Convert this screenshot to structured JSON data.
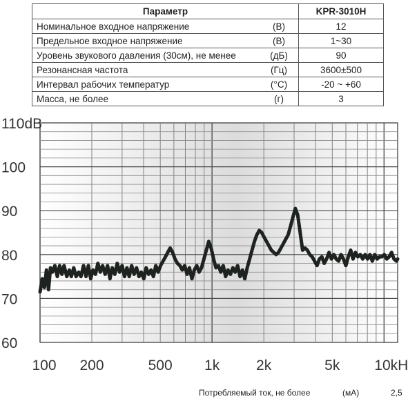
{
  "table": {
    "header": {
      "param": "Параметр",
      "model": "KPR-3010H"
    },
    "rows": [
      {
        "param": "Номинальное входное напряжение",
        "unit": "(В)",
        "value": "12"
      },
      {
        "param": "Предельное входное напряжение",
        "unit": "(В)",
        "value": "1~30"
      },
      {
        "param": "Уровень звукового давления (30см), не менее",
        "unit": "(дБ)",
        "value": "90"
      },
      {
        "param": "Резонансная частота",
        "unit": "(Гц)",
        "value": "3600±500"
      },
      {
        "param": "Интервал рабочих температур",
        "unit": "(°С)",
        "value": "-20 ~ +60"
      },
      {
        "param": "Масса, не более",
        "unit": "(г)",
        "value": "3"
      }
    ]
  },
  "footer": {
    "param": "Потребляемый ток, не более",
    "unit": "(мА)",
    "value": "2,5"
  },
  "chart_data": {
    "type": "line",
    "x_scale": "log",
    "xlim": [
      100,
      12000
    ],
    "ylim": [
      60,
      110
    ],
    "grid": true,
    "x_ticks": [
      {
        "value": 100,
        "label": "100"
      },
      {
        "value": 200,
        "label": "200"
      },
      {
        "value": 500,
        "label": "500"
      },
      {
        "value": 1000,
        "label": "1k"
      },
      {
        "value": 2000,
        "label": "2k"
      },
      {
        "value": 5000,
        "label": "5k"
      },
      {
        "value": 10000,
        "label": "10kHz"
      }
    ],
    "y_ticks": [
      {
        "value": 60,
        "label": "60"
      },
      {
        "value": 70,
        "label": "70"
      },
      {
        "value": 80,
        "label": "80"
      },
      {
        "value": 90,
        "label": "90"
      },
      {
        "value": 100,
        "label": "100"
      },
      {
        "value": 110,
        "label": "110dB"
      }
    ],
    "series": [
      {
        "color": "#1e2320",
        "points": [
          [
            100,
            71.5
          ],
          [
            103,
            74.5
          ],
          [
            106,
            72.5
          ],
          [
            109,
            76.5
          ],
          [
            112,
            72
          ],
          [
            115,
            77
          ],
          [
            118,
            76
          ],
          [
            122,
            77.5
          ],
          [
            126,
            75
          ],
          [
            130,
            77.5
          ],
          [
            134,
            75.5
          ],
          [
            138,
            77.5
          ],
          [
            143,
            75
          ],
          [
            148,
            76.5
          ],
          [
            152,
            75
          ],
          [
            157,
            77
          ],
          [
            162,
            75
          ],
          [
            168,
            76
          ],
          [
            173,
            75
          ],
          [
            179,
            77.5
          ],
          [
            185,
            75
          ],
          [
            191,
            77.5
          ],
          [
            197,
            74.5
          ],
          [
            203,
            76.5
          ],
          [
            210,
            75.5
          ],
          [
            217,
            78
          ],
          [
            224,
            76
          ],
          [
            231,
            77.5
          ],
          [
            239,
            75.5
          ],
          [
            247,
            77.5
          ],
          [
            255,
            74.5
          ],
          [
            263,
            77
          ],
          [
            272,
            75.5
          ],
          [
            281,
            78
          ],
          [
            290,
            76
          ],
          [
            300,
            77.5
          ],
          [
            310,
            75
          ],
          [
            320,
            77
          ],
          [
            330,
            75
          ],
          [
            341,
            77.5
          ],
          [
            352,
            75.5
          ],
          [
            364,
            77
          ],
          [
            376,
            75
          ],
          [
            388,
            76
          ],
          [
            401,
            74.5
          ],
          [
            414,
            77
          ],
          [
            428,
            75.5
          ],
          [
            442,
            76.5
          ],
          [
            456,
            75
          ],
          [
            471,
            77.5
          ],
          [
            486,
            76
          ],
          [
            502,
            77.5
          ],
          [
            519,
            78.5
          ],
          [
            536,
            79.5
          ],
          [
            553,
            80.5
          ],
          [
            571,
            81.5
          ],
          [
            590,
            80.5
          ],
          [
            609,
            79
          ],
          [
            629,
            78
          ],
          [
            650,
            77.5
          ],
          [
            671,
            76.5
          ],
          [
            693,
            77.5
          ],
          [
            716,
            75.5
          ],
          [
            739,
            77
          ],
          [
            764,
            74.5
          ],
          [
            789,
            76.5
          ],
          [
            815,
            77.5
          ],
          [
            841,
            76
          ],
          [
            869,
            77
          ],
          [
            897,
            79
          ],
          [
            927,
            81
          ],
          [
            957,
            83
          ],
          [
            988,
            81.5
          ],
          [
            1021,
            79
          ],
          [
            1054,
            77
          ],
          [
            1089,
            77.5
          ],
          [
            1124,
            76
          ],
          [
            1161,
            77.5
          ],
          [
            1199,
            75
          ],
          [
            1238,
            76.5
          ],
          [
            1279,
            75.5
          ],
          [
            1321,
            77
          ],
          [
            1364,
            76
          ],
          [
            1409,
            77.5
          ],
          [
            1455,
            75
          ],
          [
            1502,
            76.5
          ],
          [
            1551,
            74.5
          ],
          [
            1602,
            77
          ],
          [
            1655,
            79
          ],
          [
            1709,
            81
          ],
          [
            1765,
            83
          ],
          [
            1822,
            84.5
          ],
          [
            1882,
            85.5
          ],
          [
            1944,
            85
          ],
          [
            2007,
            84
          ],
          [
            2073,
            83
          ],
          [
            2141,
            82
          ],
          [
            2211,
            81
          ],
          [
            2283,
            80.5
          ],
          [
            2358,
            80
          ],
          [
            2435,
            80.5
          ],
          [
            2515,
            81.5
          ],
          [
            2597,
            82.5
          ],
          [
            2682,
            83.5
          ],
          [
            2770,
            84.5
          ],
          [
            2861,
            86.5
          ],
          [
            2954,
            88.5
          ],
          [
            3051,
            90.5
          ],
          [
            3151,
            89
          ],
          [
            3254,
            85
          ],
          [
            3360,
            81
          ],
          [
            3470,
            81.5
          ],
          [
            3584,
            81
          ],
          [
            3701,
            80
          ],
          [
            3822,
            79.5
          ],
          [
            3947,
            78.5
          ],
          [
            4077,
            77.5
          ],
          [
            4210,
            79
          ],
          [
            4348,
            79.5
          ],
          [
            4490,
            78
          ],
          [
            4637,
            79
          ],
          [
            4789,
            80.5
          ],
          [
            4945,
            79
          ],
          [
            5107,
            80
          ],
          [
            5274,
            79
          ],
          [
            5447,
            78.5
          ],
          [
            5626,
            80
          ],
          [
            5810,
            79
          ],
          [
            6000,
            77.5
          ],
          [
            6196,
            79.5
          ],
          [
            6399,
            81
          ],
          [
            6608,
            79
          ],
          [
            6824,
            80.5
          ],
          [
            7048,
            79.5
          ],
          [
            7278,
            80
          ],
          [
            7517,
            79
          ],
          [
            7763,
            80
          ],
          [
            8017,
            79
          ],
          [
            8279,
            80
          ],
          [
            8550,
            78.5
          ],
          [
            8830,
            80
          ],
          [
            9119,
            79
          ],
          [
            9417,
            79.5
          ],
          [
            9725,
            79.5
          ],
          [
            10043,
            80
          ],
          [
            10372,
            79
          ],
          [
            10712,
            79.5
          ],
          [
            11062,
            80.5
          ],
          [
            11424,
            79
          ],
          [
            11798,
            78.5
          ],
          [
            12000,
            79
          ]
        ]
      }
    ]
  }
}
